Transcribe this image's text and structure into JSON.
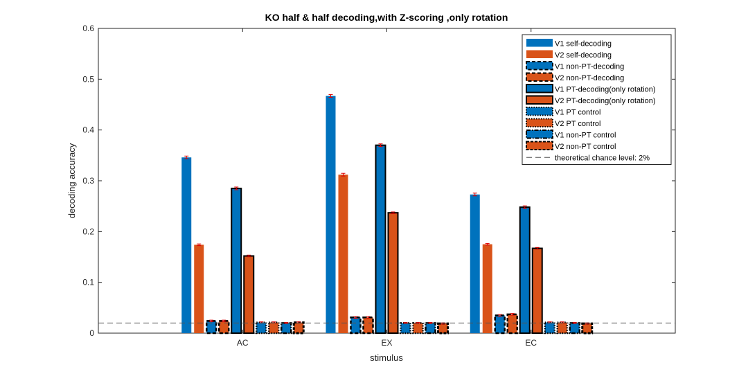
{
  "chart_data": {
    "type": "bar",
    "title": "KO half & half decoding,with Z-scoring ,only rotation",
    "xlabel": "stimulus",
    "ylabel": "decoding accuracy",
    "ylim": [
      0,
      0.6
    ],
    "yticks": [
      "0",
      "0.1",
      "0.2",
      "0.3",
      "0.4",
      "0.5",
      "0.6"
    ],
    "categories": [
      "AC",
      "EX",
      "EC"
    ],
    "legend_position": "top-right",
    "grid": false,
    "colors": {
      "v1": "#0072BD",
      "v2": "#D95319",
      "errorbar": "#e00000",
      "chance": "#555555"
    },
    "series": [
      {
        "name": "V1 self-decoding",
        "color": "#0072BD",
        "edge": "none",
        "values": [
          0.346,
          0.467,
          0.273
        ],
        "errors": [
          0.002,
          0.002,
          0.002
        ]
      },
      {
        "name": "V2 self-decoding",
        "color": "#D95319",
        "edge": "none",
        "values": [
          0.174,
          0.312,
          0.175
        ],
        "errors": [
          0.001,
          0.002,
          0.001
        ]
      },
      {
        "name": "V1 non-PT-decoding",
        "color": "#0072BD",
        "edge": "dashed",
        "values": [
          0.024,
          0.031,
          0.035
        ],
        "errors": [
          0.001,
          0.001,
          0.001
        ]
      },
      {
        "name": "V2 non-PT-decoding",
        "color": "#D95319",
        "edge": "dashed",
        "values": [
          0.024,
          0.031,
          0.037
        ],
        "errors": [
          0.001,
          0.001,
          0.001
        ]
      },
      {
        "name": "V1 PT-decoding(only rotation)",
        "color": "#0072BD",
        "edge": "solid",
        "values": [
          0.285,
          0.37,
          0.248
        ],
        "errors": [
          0.002,
          0.002,
          0.002
        ]
      },
      {
        "name": "V2 PT-decoding(only rotation)",
        "color": "#D95319",
        "edge": "solid",
        "values": [
          0.152,
          0.237,
          0.167
        ],
        "errors": [
          0.001,
          0.001,
          0.001
        ]
      },
      {
        "name": "V1 PT control",
        "color": "#0072BD",
        "edge": "dotted",
        "values": [
          0.021,
          0.02,
          0.021
        ],
        "errors": [
          0.0005,
          0.0005,
          0.0005
        ]
      },
      {
        "name": "V2 PT control",
        "color": "#D95319",
        "edge": "dotted",
        "values": [
          0.021,
          0.02,
          0.021
        ],
        "errors": [
          0.0005,
          0.0005,
          0.0005
        ]
      },
      {
        "name": "V1 non-PT control",
        "color": "#0072BD",
        "edge": "dashdot",
        "values": [
          0.02,
          0.02,
          0.02
        ],
        "errors": [
          0.0005,
          0.0005,
          0.0005
        ]
      },
      {
        "name": "V2 non-PT control",
        "color": "#D95319",
        "edge": "dashed-thick",
        "values": [
          0.021,
          0.019,
          0.019
        ],
        "errors": [
          0.0005,
          0.0005,
          0.0005
        ]
      }
    ],
    "reference_line": {
      "label": "theoretical chance level: 2%",
      "value": 0.02,
      "style": "dashed"
    }
  }
}
